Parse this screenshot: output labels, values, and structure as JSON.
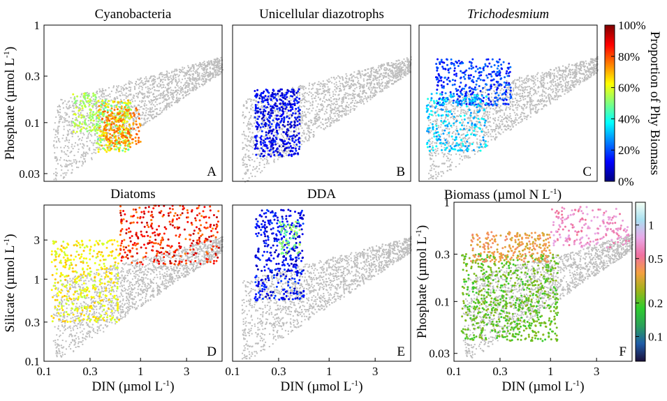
{
  "colors": {
    "background_points": "#bdbdbd",
    "proportion_colormap": [
      "#00007f",
      "#0000ff",
      "#007fff",
      "#00ffff",
      "#7fff7f",
      "#ffff00",
      "#ff7f00",
      "#ff0000",
      "#7f0000"
    ],
    "biomass_colormap": [
      "#1a0f3a",
      "#1f5ca8",
      "#2aa05a",
      "#2ecc2e",
      "#9fb31a",
      "#f4a040",
      "#f070a0",
      "#e8a8e8",
      "#a8e0f0",
      "#f4fff4"
    ]
  },
  "colorbars": {
    "proportion": {
      "label": "Proportion of Phy Biomass",
      "ticks": [
        {
          "value": 0,
          "label": "0%"
        },
        {
          "value": 20,
          "label": "20%"
        },
        {
          "value": 40,
          "label": "40%"
        },
        {
          "value": 60,
          "label": "60%"
        },
        {
          "value": 80,
          "label": "80%"
        },
        {
          "value": 100,
          "label": "100%"
        }
      ]
    },
    "biomass": {
      "label": "Biomass (µmol N L",
      "label_sup": "-1",
      "label_tail": ")",
      "scale": "log",
      "range": [
        0.06,
        1.6
      ],
      "ticks": [
        {
          "value": 0.1,
          "label": "0.1"
        },
        {
          "value": 0.2,
          "label": "0.2"
        },
        {
          "value": 0.5,
          "label": "0.5"
        },
        {
          "value": 1,
          "label": "1"
        }
      ]
    }
  },
  "chart_data": [
    {
      "id": "A",
      "type": "scatter",
      "title": "Cyanobacteria",
      "title_italic": false,
      "panel_letter": "A",
      "xscale": "log",
      "yscale": "log",
      "xlim": [
        0.1,
        7
      ],
      "ylim": [
        0.025,
        1
      ],
      "xticks": [],
      "yticks": [
        "0.03",
        "0.1",
        "0.3",
        "1"
      ],
      "ylabel": "Phosphate (µmol L",
      "ylabel_sup": "-1",
      "ylabel_tail": ")",
      "xlabel": "",
      "color_by": "proportion_percent",
      "clusters": [
        {
          "x": [
            0.35,
            0.8
          ],
          "y": [
            0.05,
            0.17
          ],
          "color": [
            45,
            75
          ],
          "n": 300
        },
        {
          "x": [
            0.4,
            1.0
          ],
          "y": [
            0.06,
            0.14
          ],
          "color": [
            70,
            80
          ],
          "n": 150
        },
        {
          "x": [
            0.2,
            0.35
          ],
          "y": [
            0.08,
            0.2
          ],
          "color": [
            50,
            60
          ],
          "n": 100
        }
      ]
    },
    {
      "id": "B",
      "type": "scatter",
      "title": "Unicellular diazotrophs",
      "title_italic": false,
      "panel_letter": "B",
      "xscale": "log",
      "yscale": "log",
      "xlim": [
        0.1,
        7
      ],
      "ylim": [
        0.025,
        1
      ],
      "xticks": [],
      "yticks": [],
      "xlabel": "",
      "ylabel": "",
      "color_by": "proportion_percent",
      "clusters": [
        {
          "x": [
            0.17,
            0.5
          ],
          "y": [
            0.045,
            0.22
          ],
          "color": [
            5,
            18
          ],
          "n": 450
        }
      ]
    },
    {
      "id": "C",
      "type": "scatter",
      "title": "Trichodesmium",
      "title_italic": true,
      "panel_letter": "C",
      "xscale": "log",
      "yscale": "log",
      "xlim": [
        0.1,
        7
      ],
      "ylim": [
        0.025,
        1
      ],
      "xticks": [],
      "yticks": [],
      "xlabel": "",
      "ylabel": "",
      "color_by": "proportion_percent",
      "clusters": [
        {
          "x": [
            0.15,
            0.9
          ],
          "y": [
            0.15,
            0.45
          ],
          "color": [
            10,
            25
          ],
          "n": 350
        },
        {
          "x": [
            0.12,
            0.5
          ],
          "y": [
            0.05,
            0.2
          ],
          "color": [
            25,
            40
          ],
          "n": 250
        }
      ]
    },
    {
      "id": "D",
      "type": "scatter",
      "title": "Diatoms",
      "title_italic": false,
      "panel_letter": "D",
      "xscale": "log",
      "yscale": "log",
      "xlim": [
        0.1,
        7
      ],
      "ylim": [
        0.1,
        8
      ],
      "xticks": [
        "0.1",
        "0.3",
        "1",
        "3"
      ],
      "yticks": [
        "0.1",
        "0.3",
        "1",
        "3"
      ],
      "xlabel": "DIN (µmol L",
      "xlabel_sup": "-1",
      "xlabel_tail": ")",
      "ylabel": "Silicate (µmol L",
      "ylabel_sup": "-1",
      "ylabel_tail": ")",
      "color_by": "proportion_percent",
      "clusters": [
        {
          "x": [
            0.12,
            0.6
          ],
          "y": [
            0.3,
            3
          ],
          "color": [
            55,
            70
          ],
          "n": 400
        },
        {
          "x": [
            0.6,
            6.5
          ],
          "y": [
            1.5,
            8
          ],
          "color": [
            75,
            95
          ],
          "n": 350
        }
      ]
    },
    {
      "id": "E",
      "type": "scatter",
      "title": "DDA",
      "title_italic": false,
      "panel_letter": "E",
      "xscale": "log",
      "yscale": "log",
      "xlim": [
        0.1,
        7
      ],
      "ylim": [
        0.1,
        8
      ],
      "xticks": [
        "0.1",
        "0.3",
        "1",
        "3"
      ],
      "yticks": [],
      "xlabel": "DIN (µmol L",
      "xlabel_sup": "-1",
      "xlabel_tail": ")",
      "ylabel": "",
      "color_by": "proportion_percent",
      "clusters": [
        {
          "x": [
            0.17,
            0.55
          ],
          "y": [
            0.55,
            7
          ],
          "color": [
            5,
            20
          ],
          "n": 400
        },
        {
          "x": [
            0.3,
            0.5
          ],
          "y": [
            2,
            5
          ],
          "color": [
            45,
            55
          ],
          "n": 60
        }
      ]
    },
    {
      "id": "F",
      "type": "scatter",
      "title": "",
      "title_italic": false,
      "panel_letter": "F",
      "xscale": "log",
      "yscale": "log",
      "xlim": [
        0.1,
        7
      ],
      "ylim": [
        0.025,
        1
      ],
      "xticks": [
        "0.1",
        "0.3",
        "1",
        "3"
      ],
      "yticks": [
        "0.03",
        "0.1",
        "0.3",
        "1"
      ],
      "xlabel": "DIN (µmol L",
      "xlabel_sup": "-1",
      "xlabel_tail": ")",
      "ylabel": "Phosphate (µmol L",
      "ylabel_sup": "-1",
      "ylabel_tail": ")",
      "color_by": "biomass",
      "clusters": [
        {
          "x": [
            0.12,
            1.2
          ],
          "y": [
            0.04,
            0.3
          ],
          "color": [
            0.18,
            0.25
          ],
          "n": 700
        },
        {
          "x": [
            0.15,
            1.0
          ],
          "y": [
            0.25,
            0.5
          ],
          "color": [
            0.3,
            0.45
          ],
          "n": 250
        },
        {
          "x": [
            1.0,
            6.5
          ],
          "y": [
            0.35,
            0.9
          ],
          "color": [
            0.5,
            0.8
          ],
          "n": 200
        }
      ]
    }
  ]
}
